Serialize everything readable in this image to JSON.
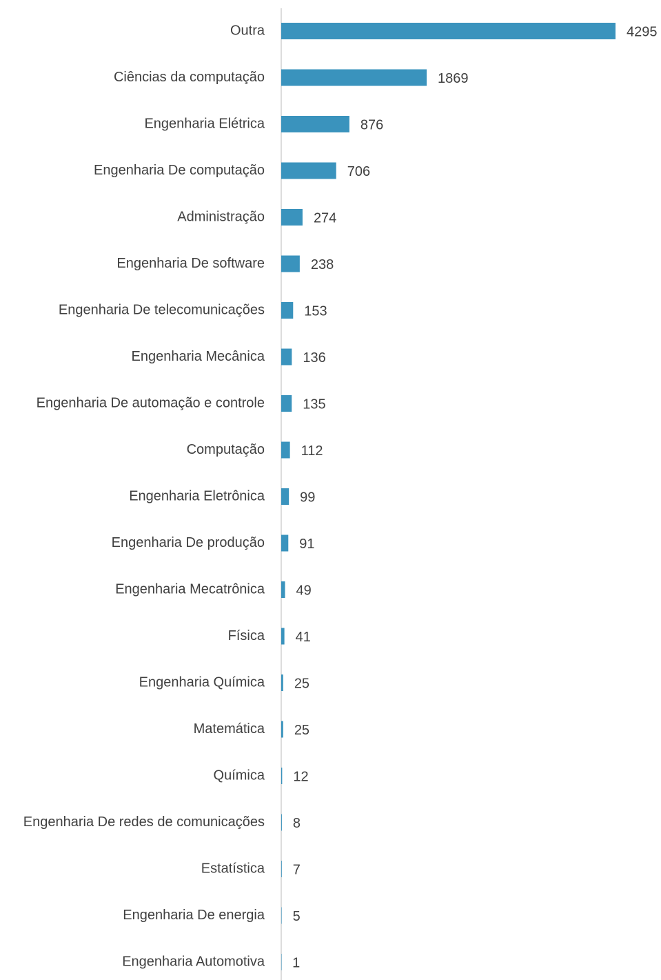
{
  "chart_data": {
    "type": "bar",
    "orientation": "horizontal",
    "categories": [
      "Outra",
      "Ciências da computação",
      "Engenharia Elétrica",
      "Engenharia De computação",
      "Administração",
      "Engenharia De software",
      "Engenharia De telecomunicações",
      "Engenharia Mecânica",
      "Engenharia De automação e controle",
      "Computação",
      "Engenharia Eletrônica",
      "Engenharia De produção",
      "Engenharia Mecatrônica",
      "Física",
      "Engenharia Química",
      "Matemática",
      "Química",
      "Engenharia De redes de comunicações",
      "Estatística",
      "Engenharia De energia",
      "Engenharia Automotiva"
    ],
    "values": [
      4295,
      1869,
      876,
      706,
      274,
      238,
      153,
      136,
      135,
      112,
      99,
      91,
      49,
      41,
      25,
      25,
      12,
      8,
      7,
      5,
      1
    ],
    "color": "#3a93bd"
  }
}
